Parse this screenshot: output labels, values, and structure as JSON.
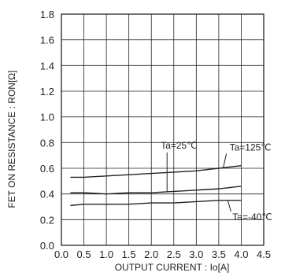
{
  "chart_data": {
    "type": "line",
    "title": "",
    "xlabel": "OUTPUT CURRENT : Io[A]",
    "ylabel": "FET ON RESISTANCE : RON[Ω]",
    "xlim": [
      0.0,
      4.5
    ],
    "ylim": [
      0.0,
      1.8
    ],
    "grid": true,
    "x_ticks": [
      "0.0",
      "0.5",
      "1.0",
      "1.5",
      "2.0",
      "2.5",
      "3.0",
      "3.5",
      "4.0",
      "4.5"
    ],
    "y_ticks": [
      "0.0",
      "0.2",
      "0.4",
      "0.6",
      "0.8",
      "1.0",
      "1.2",
      "1.4",
      "1.6",
      "1.8"
    ],
    "series": [
      {
        "name": "Ta=125℃",
        "x": [
          0.2,
          0.5,
          1.0,
          1.5,
          2.0,
          2.5,
          3.0,
          3.5,
          4.0
        ],
        "y": [
          0.53,
          0.53,
          0.54,
          0.55,
          0.56,
          0.57,
          0.58,
          0.6,
          0.62
        ]
      },
      {
        "name": "Ta=25℃",
        "x": [
          0.2,
          0.5,
          1.0,
          1.5,
          2.0,
          2.5,
          3.0,
          3.5,
          4.0
        ],
        "y": [
          0.41,
          0.41,
          0.4,
          0.41,
          0.41,
          0.42,
          0.43,
          0.44,
          0.46
        ]
      },
      {
        "name": "Ta=-40℃",
        "x": [
          0.2,
          0.5,
          1.0,
          1.5,
          2.0,
          2.5,
          3.0,
          3.5,
          4.0
        ],
        "y": [
          0.31,
          0.32,
          0.32,
          0.32,
          0.33,
          0.33,
          0.34,
          0.35,
          0.35
        ]
      }
    ],
    "annotations": [
      {
        "text": "Ta=25℃",
        "series": "Ta=25℃",
        "at_x": 2.35
      },
      {
        "text": "Ta=125℃",
        "series": "Ta=125℃",
        "at_x": 3.6
      },
      {
        "text": "Ta=-40℃",
        "series": "Ta=-40℃",
        "at_x": 3.7
      }
    ],
    "colors": {
      "line": "#222222",
      "grid": "#222222"
    }
  }
}
